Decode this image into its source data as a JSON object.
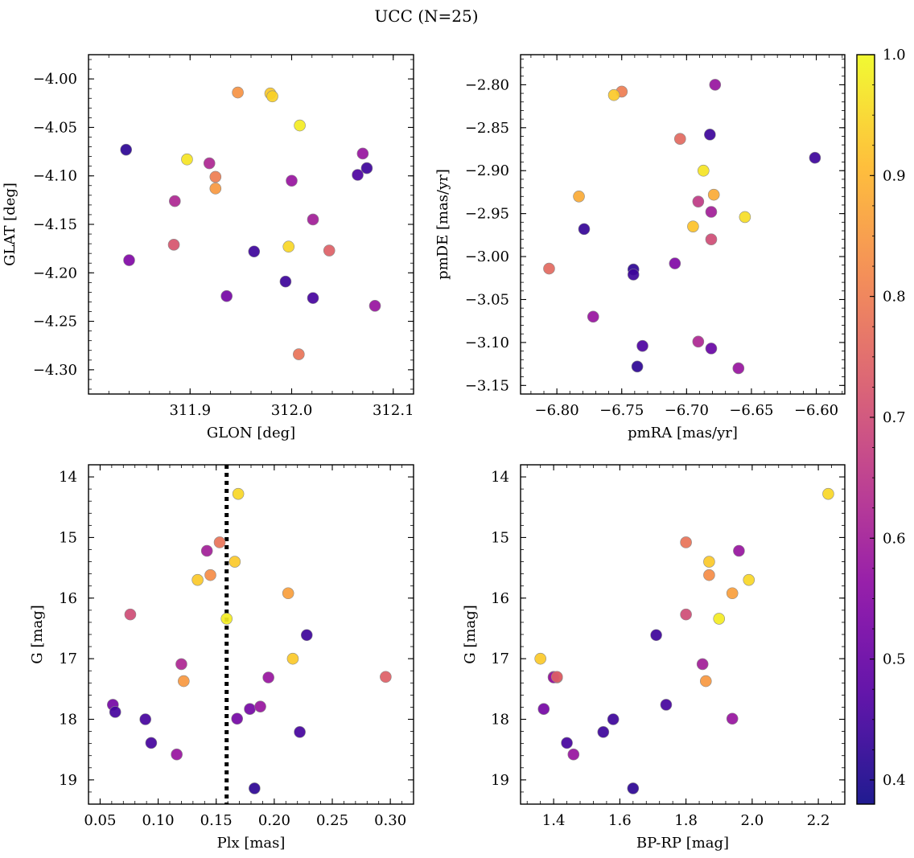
{
  "title": "UCC (N=25)",
  "colorbar": {
    "min": 0.38,
    "max": 1.0,
    "ticks": [
      0.4,
      0.5,
      0.6,
      0.7,
      0.8,
      0.9,
      1.0
    ],
    "tick_labels": [
      "0.4",
      "0.5",
      "0.6",
      "0.7",
      "0.8",
      "0.9",
      "1.0"
    ],
    "colormap": "plasma"
  },
  "chart_data": [
    {
      "type": "scatter",
      "xlabel": "GLON [deg]",
      "ylabel": "GLAT [deg]",
      "xlim": [
        311.8,
        312.12
      ],
      "ylim": [
        -4.325,
        -3.975
      ],
      "xticks": [
        311.9,
        312.0,
        312.1
      ],
      "xtick_labels": [
        "311.9",
        "312.0",
        "312.1"
      ],
      "yticks": [
        -4.0,
        -4.05,
        -4.1,
        -4.15,
        -4.2,
        -4.25,
        -4.3
      ],
      "ytick_labels": [
        "−4.00",
        "−4.05",
        "−4.10",
        "−4.15",
        "−4.20",
        "−4.25",
        "−4.30"
      ],
      "x": [
        311.837,
        311.947,
        311.979,
        311.981,
        312.008,
        311.897,
        311.919,
        311.925,
        311.925,
        312.0,
        311.885,
        312.021,
        311.884,
        311.963,
        311.997,
        312.037,
        311.84,
        311.994,
        311.936,
        312.021,
        312.082,
        312.007,
        312.07,
        312.065,
        312.074
      ],
      "y": [
        -4.073,
        -4.014,
        -4.015,
        -4.018,
        -4.048,
        -4.083,
        -4.087,
        -4.101,
        -4.113,
        -4.105,
        -4.126,
        -4.145,
        -4.171,
        -4.178,
        -4.173,
        -4.177,
        -4.187,
        -4.209,
        -4.224,
        -4.226,
        -4.234,
        -4.284,
        -4.077,
        -4.099,
        -4.092
      ],
      "c": [
        0.42,
        0.84,
        0.93,
        0.94,
        0.98,
        0.97,
        0.62,
        0.8,
        0.85,
        0.58,
        0.62,
        0.6,
        0.72,
        0.44,
        0.95,
        0.74,
        0.54,
        0.44,
        0.52,
        0.45,
        0.58,
        0.78,
        0.58,
        0.46,
        0.44
      ]
    },
    {
      "type": "scatter",
      "xlabel": "pmRA [mas/yr]",
      "ylabel": "pmDE [mas/yr]",
      "xlim": [
        -6.828,
        -6.578
      ],
      "ylim": [
        -3.16,
        -2.765
      ],
      "xticks": [
        -6.8,
        -6.75,
        -6.7,
        -6.65,
        -6.6
      ],
      "xtick_labels": [
        "−6.80",
        "−6.75",
        "−6.70",
        "−6.65",
        "−6.60"
      ],
      "yticks": [
        -2.8,
        -2.85,
        -2.9,
        -2.95,
        -3.0,
        -3.05,
        -3.1,
        -3.15
      ],
      "ytick_labels": [
        "−2.80",
        "−2.85",
        "−2.90",
        "−2.95",
        "−3.00",
        "−3.05",
        "−3.10",
        "−3.15"
      ],
      "x": [
        -6.678,
        -6.75,
        -6.756,
        -6.682,
        -6.705,
        -6.601,
        -6.687,
        -6.783,
        -6.679,
        -6.691,
        -6.655,
        -6.681,
        -6.695,
        -6.779,
        -6.681,
        -6.741,
        -6.709,
        -6.806,
        -6.741,
        -6.772,
        -6.734,
        -6.691,
        -6.681,
        -6.738,
        -6.66
      ],
      "y": [
        -2.8,
        -2.808,
        -2.812,
        -2.858,
        -2.863,
        -2.885,
        -2.9,
        -2.93,
        -2.928,
        -2.936,
        -2.954,
        -2.948,
        -2.965,
        -2.968,
        -2.98,
        -3.015,
        -3.008,
        -3.014,
        -3.021,
        -3.07,
        -3.104,
        -3.099,
        -3.107,
        -3.128,
        -3.13
      ],
      "c": [
        0.58,
        0.8,
        0.93,
        0.44,
        0.76,
        0.44,
        0.97,
        0.88,
        0.88,
        0.66,
        0.96,
        0.6,
        0.92,
        0.43,
        0.7,
        0.42,
        0.54,
        0.76,
        0.44,
        0.58,
        0.46,
        0.62,
        0.5,
        0.42,
        0.58
      ]
    },
    {
      "type": "scatter",
      "xlabel": "Plx [mas]",
      "ylabel": "G [mag]",
      "xlim": [
        0.04,
        0.32
      ],
      "ylim": [
        19.4,
        13.8
      ],
      "xticks": [
        0.05,
        0.1,
        0.15,
        0.2,
        0.25,
        0.3
      ],
      "xtick_labels": [
        "0.05",
        "0.10",
        "0.15",
        "0.20",
        "0.25",
        "0.30"
      ],
      "yticks": [
        14,
        15,
        16,
        17,
        18,
        19
      ],
      "ytick_labels": [
        "14",
        "15",
        "16",
        "17",
        "18",
        "19"
      ],
      "vline": 0.159,
      "x": [
        0.169,
        0.153,
        0.142,
        0.145,
        0.166,
        0.134,
        0.212,
        0.159,
        0.076,
        0.228,
        0.216,
        0.296,
        0.195,
        0.12,
        0.122,
        0.061,
        0.063,
        0.089,
        0.179,
        0.188,
        0.168,
        0.094,
        0.222,
        0.116,
        0.183
      ],
      "y": [
        14.28,
        15.08,
        15.22,
        15.62,
        15.4,
        15.7,
        15.92,
        16.34,
        16.27,
        16.61,
        17.0,
        17.3,
        17.31,
        17.09,
        17.37,
        17.76,
        17.88,
        18.0,
        17.83,
        17.79,
        17.99,
        18.39,
        18.21,
        18.58,
        19.14
      ],
      "c": [
        0.95,
        0.78,
        0.6,
        0.83,
        0.93,
        0.93,
        0.86,
        0.98,
        0.7,
        0.44,
        0.93,
        0.74,
        0.58,
        0.62,
        0.85,
        0.52,
        0.45,
        0.45,
        0.52,
        0.58,
        0.52,
        0.45,
        0.45,
        0.58,
        0.42
      ]
    },
    {
      "type": "scatter",
      "xlabel": "BP-RP [mag]",
      "ylabel": "G [mag]",
      "xlim": [
        1.3,
        2.28
      ],
      "ylim": [
        19.4,
        13.8
      ],
      "xticks": [
        1.4,
        1.6,
        1.8,
        2.0,
        2.2
      ],
      "xtick_labels": [
        "1.4",
        "1.6",
        "1.8",
        "2.0",
        "2.2"
      ],
      "yticks": [
        14,
        15,
        16,
        17,
        18,
        19
      ],
      "ytick_labels": [
        "14",
        "15",
        "16",
        "17",
        "18",
        "19"
      ],
      "x": [
        2.23,
        1.8,
        1.96,
        1.87,
        1.87,
        1.99,
        1.94,
        1.9,
        1.8,
        1.71,
        1.36,
        1.41,
        1.4,
        1.85,
        1.86,
        1.74,
        1.37,
        1.58,
        1.94,
        1.55,
        1.44,
        1.46,
        1.64,
        1.4,
        1.41
      ],
      "y": [
        14.28,
        15.08,
        15.22,
        15.4,
        15.62,
        15.7,
        15.92,
        16.34,
        16.27,
        16.61,
        17.0,
        17.31,
        17.3,
        17.09,
        17.37,
        17.76,
        17.83,
        18.0,
        17.99,
        18.21,
        18.39,
        18.58,
        19.14,
        17.31,
        17.3
      ],
      "c": [
        0.95,
        0.78,
        0.58,
        0.93,
        0.83,
        0.95,
        0.86,
        0.98,
        0.7,
        0.44,
        0.93,
        0.74,
        0.58,
        0.6,
        0.85,
        0.45,
        0.52,
        0.44,
        0.58,
        0.44,
        0.45,
        0.58,
        0.42,
        0.58,
        0.74
      ]
    }
  ]
}
